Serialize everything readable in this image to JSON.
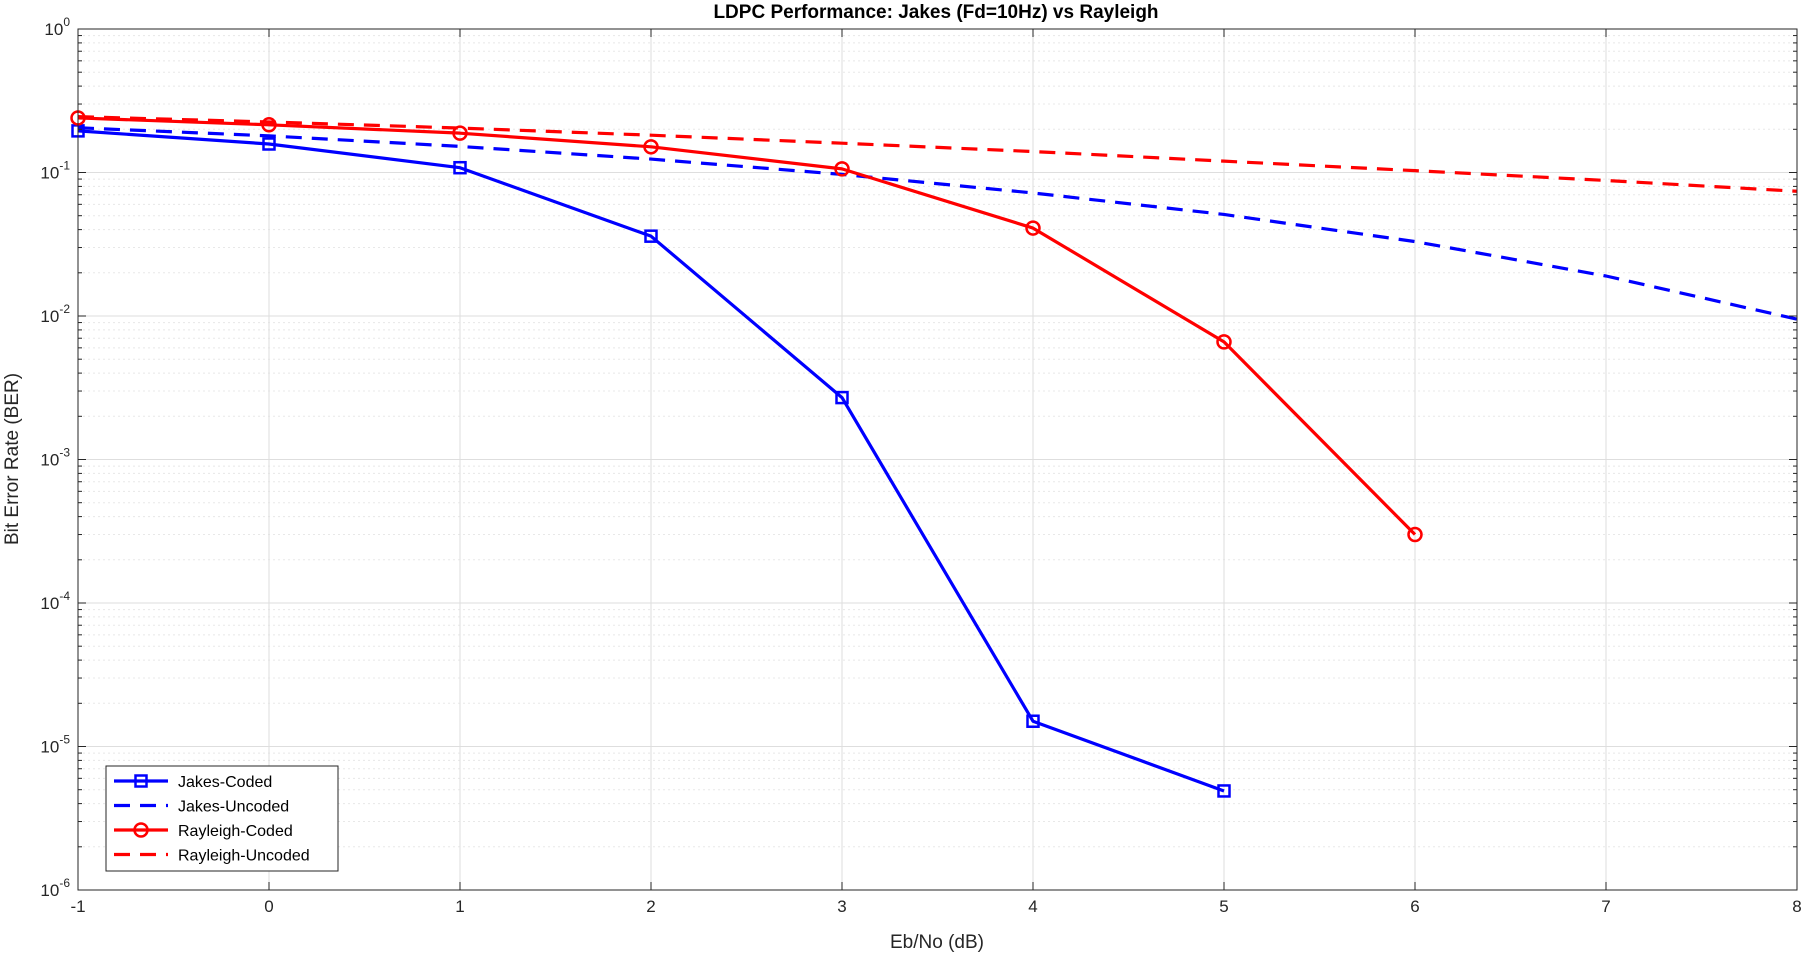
{
  "chart_data": {
    "type": "line",
    "title": "LDPC Performance: Jakes (Fd=10Hz) vs Rayleigh",
    "xlabel": "Eb/No (dB)",
    "ylabel": "Bit Error Rate (BER)",
    "xlim": [
      -1,
      8
    ],
    "ylim": [
      1e-06,
      1
    ],
    "yscale": "log",
    "grid": true,
    "minor_grid": true,
    "legend_position": "bottom-left",
    "x_ticks": [
      -1,
      0,
      1,
      2,
      3,
      4,
      5,
      6,
      7,
      8
    ],
    "x_tick_labels": [
      "-1",
      "0",
      "1",
      "2",
      "3",
      "4",
      "5",
      "6",
      "7",
      "8"
    ],
    "y_ticks": [
      {
        "base": "10",
        "exp": "0",
        "value": 1
      },
      {
        "base": "10",
        "exp": "-1",
        "value": 0.1
      },
      {
        "base": "10",
        "exp": "-2",
        "value": 0.01
      },
      {
        "base": "10",
        "exp": "-3",
        "value": 0.001
      },
      {
        "base": "10",
        "exp": "-4",
        "value": 0.0001
      },
      {
        "base": "10",
        "exp": "-5",
        "value": 1e-05
      },
      {
        "base": "10",
        "exp": "-6",
        "value": 1e-06
      }
    ],
    "series": [
      {
        "name": "Jakes-Coded",
        "color": "#0000ff",
        "line_style": "solid",
        "marker": "square",
        "x": [
          -1,
          0,
          1,
          2,
          3,
          4,
          5
        ],
        "y": [
          0.195,
          0.158,
          0.108,
          0.036,
          0.0027,
          1.5e-05,
          4.9e-06
        ]
      },
      {
        "name": "Jakes-Uncoded",
        "color": "#0000ff",
        "line_style": "dashed",
        "marker": "none",
        "x": [
          -1,
          0,
          1,
          2,
          3,
          4,
          5,
          6,
          7,
          8
        ],
        "y": [
          0.205,
          0.18,
          0.152,
          0.124,
          0.097,
          0.072,
          0.051,
          0.033,
          0.019,
          0.0095
        ]
      },
      {
        "name": "Rayleigh-Coded",
        "color": "#ff0000",
        "line_style": "solid",
        "marker": "circle",
        "x": [
          -1,
          0,
          1,
          2,
          3,
          4,
          5,
          6
        ],
        "y": [
          0.24,
          0.215,
          0.188,
          0.151,
          0.106,
          0.041,
          0.0066,
          0.0003
        ]
      },
      {
        "name": "Rayleigh-Uncoded",
        "color": "#ff0000",
        "line_style": "dashed",
        "marker": "none",
        "x": [
          -1,
          0,
          1,
          2,
          3,
          4,
          5,
          6,
          7,
          8
        ],
        "y": [
          0.245,
          0.225,
          0.204,
          0.182,
          0.16,
          0.14,
          0.12,
          0.103,
          0.088,
          0.074
        ]
      }
    ]
  }
}
